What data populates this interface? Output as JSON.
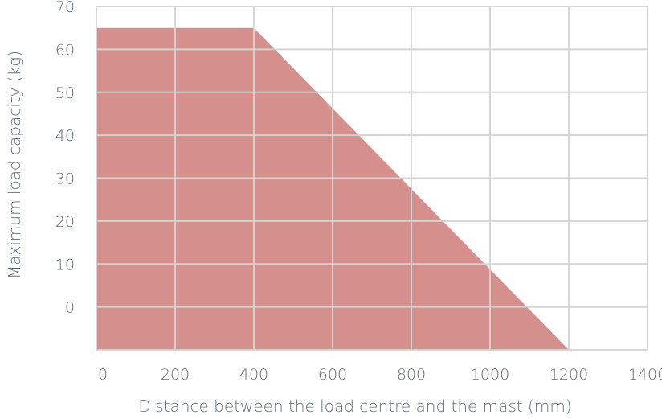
{
  "chart_data": {
    "type": "area",
    "title": "",
    "xlabel": "Distance between the load centre and the mast (mm)",
    "ylabel": "Maximum load capacity (kg)",
    "x_ticks": [
      "0",
      "200",
      "400",
      "600",
      "800",
      "1000",
      "1200",
      "1400"
    ],
    "y_ticks": [
      "70",
      "60",
      "50",
      "40",
      "30",
      "20",
      "10",
      "0"
    ],
    "xlim": [
      0,
      1400
    ],
    "ylim": [
      -10,
      70
    ],
    "grid": true,
    "series": [
      {
        "x": [
          0,
          0,
          400,
          1200,
          1200
        ],
        "y": [
          -10,
          65,
          65,
          -10,
          -10
        ]
      }
    ],
    "colors": {
      "fill": "#d5908e",
      "grid": "#d6d6d6",
      "text": "#5f6a7b"
    }
  }
}
